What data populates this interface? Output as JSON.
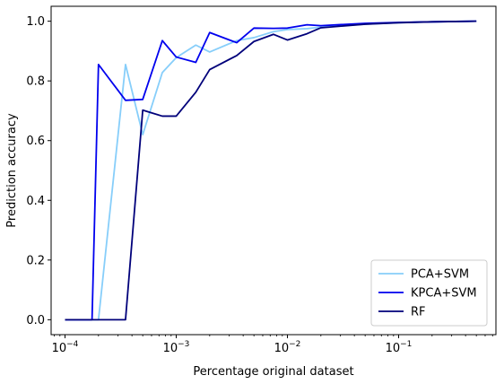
{
  "chart_data": {
    "type": "line",
    "title": "",
    "xlabel": "Percentage original dataset",
    "ylabel": "Prediction accuracy",
    "xscale": "log",
    "xlim": [
      7.5e-05,
      0.75
    ],
    "ylim": [
      -0.05,
      1.05
    ],
    "x_ticks": [
      {
        "value": 0.0001,
        "base": "10",
        "exp": "−4"
      },
      {
        "value": 0.001,
        "base": "10",
        "exp": "−3"
      },
      {
        "value": 0.01,
        "base": "10",
        "exp": "−2"
      },
      {
        "value": 0.1,
        "base": "10",
        "exp": "−1"
      }
    ],
    "y_ticks": [
      {
        "value": 0.0,
        "label": "0.0"
      },
      {
        "value": 0.2,
        "label": "0.2"
      },
      {
        "value": 0.4,
        "label": "0.4"
      },
      {
        "value": 0.6,
        "label": "0.6"
      },
      {
        "value": 0.8,
        "label": "0.8"
      },
      {
        "value": 1.0,
        "label": "1.0"
      }
    ],
    "grid": false,
    "legend_position": "lower-right",
    "series": [
      {
        "name": "PCA+SVM",
        "color": "#87cefa",
        "x": [
          0.0001,
          0.000175,
          0.0002,
          0.00035,
          0.0005,
          0.00075,
          0.001,
          0.0015,
          0.002,
          0.0035,
          0.005,
          0.0075,
          0.01,
          0.015,
          0.02,
          0.05,
          0.1,
          0.2,
          0.5
        ],
        "y": [
          0.0,
          0.0,
          0.0,
          0.855,
          0.62,
          0.828,
          0.878,
          0.92,
          0.897,
          0.935,
          0.945,
          0.965,
          0.972,
          0.975,
          0.98,
          0.99,
          0.995,
          0.998,
          1.0
        ]
      },
      {
        "name": "KPCA+SVM",
        "color": "#0000ee",
        "x": [
          0.0001,
          0.000175,
          0.0002,
          0.00035,
          0.0005,
          0.00075,
          0.001,
          0.0015,
          0.002,
          0.0035,
          0.005,
          0.0075,
          0.01,
          0.015,
          0.02,
          0.05,
          0.1,
          0.2,
          0.5
        ],
        "y": [
          0.0,
          0.0,
          0.855,
          0.735,
          0.738,
          0.935,
          0.88,
          0.862,
          0.962,
          0.928,
          0.977,
          0.976,
          0.977,
          0.988,
          0.985,
          0.993,
          0.996,
          0.998,
          1.0
        ]
      },
      {
        "name": "RF",
        "color": "#00007a",
        "x": [
          0.0001,
          0.000175,
          0.0002,
          0.00035,
          0.0005,
          0.00075,
          0.001,
          0.0015,
          0.002,
          0.0035,
          0.005,
          0.0075,
          0.01,
          0.015,
          0.02,
          0.05,
          0.1,
          0.2,
          0.5
        ],
        "y": [
          0.0,
          0.0,
          0.0,
          0.0,
          0.702,
          0.682,
          0.682,
          0.762,
          0.838,
          0.885,
          0.932,
          0.956,
          0.937,
          0.958,
          0.978,
          0.99,
          0.995,
          0.998,
          1.0
        ]
      }
    ]
  }
}
